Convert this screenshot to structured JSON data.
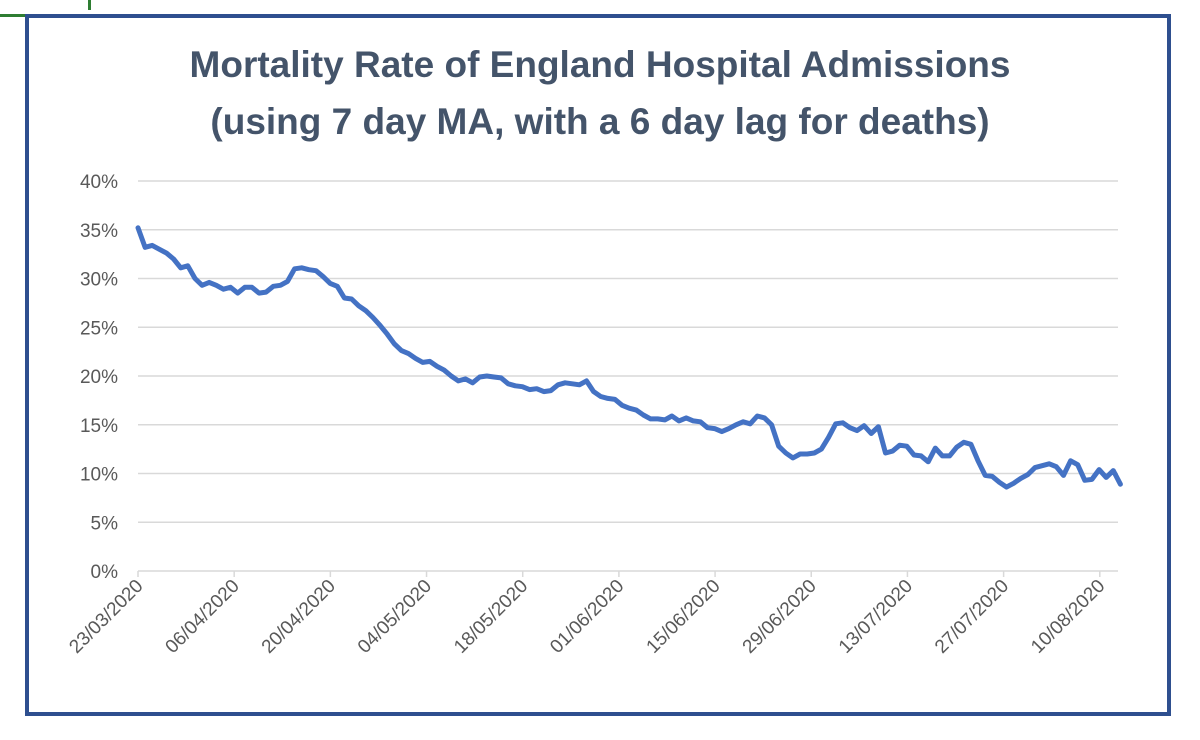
{
  "chart_data": {
    "type": "line",
    "title": "Mortality Rate of England Hospital Admissions",
    "subtitle": "(using 7 day MA, with a 6 day lag for deaths)",
    "xlabel": "",
    "ylabel": "",
    "ylim": [
      0,
      40
    ],
    "yticks": [
      "0%",
      "5%",
      "10%",
      "15%",
      "20%",
      "25%",
      "30%",
      "35%",
      "40%"
    ],
    "xticks": [
      "23/03/2020",
      "06/04/2020",
      "20/04/2020",
      "04/05/2020",
      "18/05/2020",
      "01/06/2020",
      "15/06/2020",
      "29/06/2020",
      "13/07/2020",
      "27/07/2020",
      "10/08/2020"
    ],
    "x_day_range": [
      0,
      143
    ],
    "grid": true,
    "color": "#4472c4",
    "series": [
      {
        "name": "Mortality rate",
        "values": [
          35.2,
          33.2,
          33.4,
          33.0,
          32.6,
          32.0,
          31.1,
          31.3,
          30.0,
          29.3,
          29.6,
          29.3,
          28.9,
          29.1,
          28.5,
          29.1,
          29.1,
          28.5,
          28.6,
          29.2,
          29.3,
          29.7,
          31.0,
          31.1,
          30.9,
          30.8,
          30.2,
          29.5,
          29.2,
          28.0,
          27.9,
          27.2,
          26.7,
          26.0,
          25.2,
          24.3,
          23.3,
          22.6,
          22.3,
          21.8,
          21.4,
          21.5,
          21.0,
          20.6,
          20.0,
          19.5,
          19.7,
          19.3,
          19.9,
          20.0,
          19.9,
          19.8,
          19.2,
          19.0,
          18.9,
          18.6,
          18.7,
          18.4,
          18.5,
          19.1,
          19.3,
          19.2,
          19.1,
          19.5,
          18.4,
          17.9,
          17.7,
          17.6,
          17.0,
          16.7,
          16.5,
          16.0,
          15.6,
          15.6,
          15.5,
          15.9,
          15.4,
          15.7,
          15.4,
          15.3,
          14.7,
          14.6,
          14.3,
          14.6,
          15.0,
          15.3,
          15.1,
          15.9,
          15.7,
          15.0,
          12.8,
          12.1,
          11.6,
          12.0,
          12.0,
          12.1,
          12.5,
          13.7,
          15.1,
          15.2,
          14.7,
          14.4,
          14.9,
          14.1,
          14.8,
          12.1,
          12.3,
          12.9,
          12.8,
          11.9,
          11.8,
          11.2,
          12.6,
          11.8,
          11.8,
          12.7,
          13.2,
          13.0,
          11.3,
          9.8,
          9.7,
          9.1,
          8.6,
          9.0,
          9.5,
          9.9,
          10.6,
          10.8,
          11.0,
          10.7,
          9.8,
          11.3,
          10.9,
          9.3,
          9.4,
          10.4,
          9.6,
          10.3,
          8.9
        ]
      }
    ]
  }
}
